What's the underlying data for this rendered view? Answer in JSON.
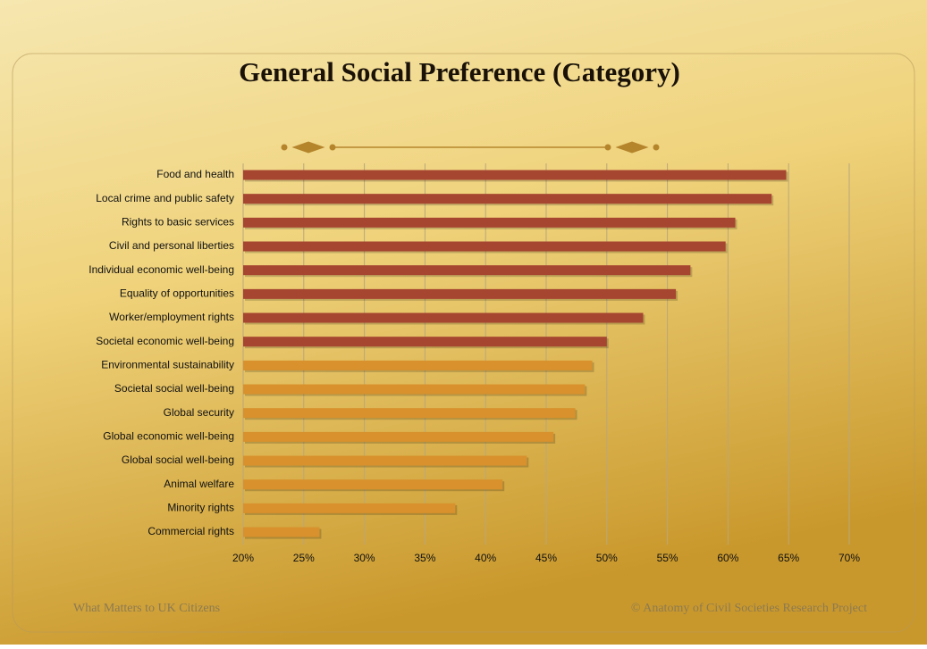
{
  "chart_data": {
    "type": "barh",
    "title": "General Social Preference (Category)",
    "categories": [
      "Food and health",
      "Local crime and public safety",
      "Rights to basic services",
      "Civil and personal liberties",
      "Individual economic well-being",
      "Equality of opportunities",
      "Worker/employment rights",
      "Societal economic well-being",
      "Environmental sustainability",
      "Societal social well-being",
      "Global security",
      "Global economic well-being",
      "Global social well-being",
      "Animal welfare",
      "Minority rights",
      "Commercial rights"
    ],
    "values": [
      64.8,
      63.6,
      60.6,
      59.8,
      56.9,
      55.7,
      53.0,
      50.0,
      48.8,
      48.2,
      47.4,
      45.6,
      43.4,
      41.4,
      37.5,
      26.3
    ],
    "colors": [
      "#a64530",
      "#a64530",
      "#a64530",
      "#a64530",
      "#a64530",
      "#a64530",
      "#a64530",
      "#a64530",
      "#d8912c",
      "#d8912c",
      "#d8912c",
      "#d8912c",
      "#d8912c",
      "#d8912c",
      "#d8912c",
      "#d8912c"
    ],
    "xlim": [
      20,
      70
    ],
    "xticks": [
      {
        "value": 20,
        "label": "20%"
      },
      {
        "value": 25,
        "label": "25%"
      },
      {
        "value": 30,
        "label": "30%"
      },
      {
        "value": 35,
        "label": "35%"
      },
      {
        "value": 40,
        "label": "40%"
      },
      {
        "value": 45,
        "label": "45%"
      },
      {
        "value": 50,
        "label": "50%"
      },
      {
        "value": 55,
        "label": "55%"
      },
      {
        "value": 60,
        "label": "60%"
      },
      {
        "value": 65,
        "label": "65%"
      },
      {
        "value": 70,
        "label": "70%"
      }
    ],
    "grid": true
  },
  "footer": {
    "left": "What Matters to UK Citizens",
    "right": "© Anatomy of Civil Societies Research Project"
  }
}
